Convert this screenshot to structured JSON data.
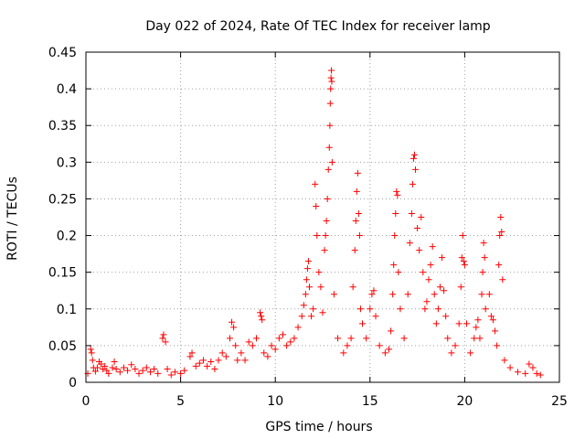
{
  "chart_data": {
    "type": "scatter",
    "title": "Day 022 of 2024, Rate Of TEC Index for receiver lamp",
    "xlabel": "GPS time / hours",
    "ylabel": "ROTI / TECUs",
    "xlim": [
      0,
      25
    ],
    "ylim": [
      0,
      0.45
    ],
    "xticks": [
      0,
      5,
      10,
      15,
      20,
      25
    ],
    "xtick_labels": [
      "0",
      "5",
      "10",
      "15",
      "20",
      "25"
    ],
    "yticks": [
      0,
      0.05,
      0.1,
      0.15,
      0.2,
      0.25,
      0.3,
      0.35,
      0.4,
      0.45
    ],
    "ytick_labels": [
      "0",
      "0.05",
      "0.1",
      "0.15",
      "0.2",
      "0.25",
      "0.3",
      "0.35",
      "0.4",
      "0.45"
    ],
    "grid": true,
    "marker": "+",
    "color": "#ff0000",
    "points": [
      [
        0.1,
        0.012
      ],
      [
        0.25,
        0.045
      ],
      [
        0.3,
        0.04
      ],
      [
        0.35,
        0.03
      ],
      [
        0.4,
        0.02
      ],
      [
        0.5,
        0.015
      ],
      [
        0.6,
        0.02
      ],
      [
        0.7,
        0.028
      ],
      [
        0.8,
        0.025
      ],
      [
        0.9,
        0.018
      ],
      [
        1.0,
        0.022
      ],
      [
        1.1,
        0.016
      ],
      [
        1.2,
        0.012
      ],
      [
        1.4,
        0.02
      ],
      [
        1.5,
        0.028
      ],
      [
        1.6,
        0.018
      ],
      [
        1.8,
        0.014
      ],
      [
        2.0,
        0.02
      ],
      [
        2.2,
        0.016
      ],
      [
        2.4,
        0.024
      ],
      [
        2.6,
        0.018
      ],
      [
        2.8,
        0.012
      ],
      [
        3.0,
        0.016
      ],
      [
        3.2,
        0.02
      ],
      [
        3.4,
        0.014
      ],
      [
        3.6,
        0.018
      ],
      [
        3.8,
        0.012
      ],
      [
        4.05,
        0.06
      ],
      [
        4.1,
        0.065
      ],
      [
        4.2,
        0.055
      ],
      [
        4.3,
        0.018
      ],
      [
        4.5,
        0.01
      ],
      [
        4.7,
        0.014
      ],
      [
        5.0,
        0.012
      ],
      [
        5.2,
        0.016
      ],
      [
        5.5,
        0.035
      ],
      [
        5.6,
        0.04
      ],
      [
        5.8,
        0.022
      ],
      [
        6.0,
        0.026
      ],
      [
        6.2,
        0.03
      ],
      [
        6.4,
        0.022
      ],
      [
        6.6,
        0.028
      ],
      [
        6.8,
        0.018
      ],
      [
        7.0,
        0.03
      ],
      [
        7.2,
        0.04
      ],
      [
        7.4,
        0.035
      ],
      [
        7.6,
        0.06
      ],
      [
        7.7,
        0.082
      ],
      [
        7.8,
        0.075
      ],
      [
        7.9,
        0.05
      ],
      [
        8.0,
        0.03
      ],
      [
        8.2,
        0.04
      ],
      [
        8.4,
        0.03
      ],
      [
        8.6,
        0.055
      ],
      [
        8.8,
        0.05
      ],
      [
        9.0,
        0.06
      ],
      [
        9.2,
        0.095
      ],
      [
        9.25,
        0.09
      ],
      [
        9.3,
        0.085
      ],
      [
        9.4,
        0.04
      ],
      [
        9.6,
        0.035
      ],
      [
        9.8,
        0.05
      ],
      [
        10.0,
        0.045
      ],
      [
        10.2,
        0.06
      ],
      [
        10.4,
        0.065
      ],
      [
        10.6,
        0.05
      ],
      [
        10.8,
        0.055
      ],
      [
        11.0,
        0.06
      ],
      [
        11.2,
        0.075
      ],
      [
        11.4,
        0.09
      ],
      [
        11.5,
        0.105
      ],
      [
        11.6,
        0.12
      ],
      [
        11.65,
        0.14
      ],
      [
        11.7,
        0.155
      ],
      [
        11.75,
        0.165
      ],
      [
        11.8,
        0.13
      ],
      [
        11.9,
        0.09
      ],
      [
        12.0,
        0.1
      ],
      [
        12.1,
        0.27
      ],
      [
        12.15,
        0.24
      ],
      [
        12.2,
        0.2
      ],
      [
        12.3,
        0.15
      ],
      [
        12.4,
        0.13
      ],
      [
        12.5,
        0.095
      ],
      [
        12.6,
        0.18
      ],
      [
        12.65,
        0.2
      ],
      [
        12.7,
        0.22
      ],
      [
        12.75,
        0.25
      ],
      [
        12.8,
        0.29
      ],
      [
        12.85,
        0.32
      ],
      [
        12.88,
        0.35
      ],
      [
        12.9,
        0.38
      ],
      [
        12.92,
        0.4
      ],
      [
        12.94,
        0.415
      ],
      [
        12.96,
        0.425
      ],
      [
        12.98,
        0.41
      ],
      [
        13.0,
        0.3
      ],
      [
        13.1,
        0.12
      ],
      [
        13.3,
        0.06
      ],
      [
        13.6,
        0.04
      ],
      [
        13.8,
        0.05
      ],
      [
        14.0,
        0.06
      ],
      [
        14.1,
        0.13
      ],
      [
        14.2,
        0.18
      ],
      [
        14.25,
        0.22
      ],
      [
        14.3,
        0.26
      ],
      [
        14.35,
        0.285
      ],
      [
        14.4,
        0.23
      ],
      [
        14.45,
        0.2
      ],
      [
        14.5,
        0.1
      ],
      [
        14.6,
        0.08
      ],
      [
        14.8,
        0.06
      ],
      [
        15.0,
        0.1
      ],
      [
        15.1,
        0.12
      ],
      [
        15.2,
        0.125
      ],
      [
        15.3,
        0.09
      ],
      [
        15.5,
        0.05
      ],
      [
        15.8,
        0.04
      ],
      [
        16.0,
        0.045
      ],
      [
        16.1,
        0.07
      ],
      [
        16.2,
        0.12
      ],
      [
        16.25,
        0.16
      ],
      [
        16.3,
        0.2
      ],
      [
        16.35,
        0.23
      ],
      [
        16.4,
        0.26
      ],
      [
        16.45,
        0.255
      ],
      [
        16.5,
        0.15
      ],
      [
        16.6,
        0.1
      ],
      [
        16.8,
        0.06
      ],
      [
        17.0,
        0.12
      ],
      [
        17.1,
        0.19
      ],
      [
        17.2,
        0.23
      ],
      [
        17.25,
        0.27
      ],
      [
        17.3,
        0.305
      ],
      [
        17.35,
        0.31
      ],
      [
        17.4,
        0.29
      ],
      [
        17.5,
        0.21
      ],
      [
        17.6,
        0.18
      ],
      [
        17.7,
        0.225
      ],
      [
        17.8,
        0.15
      ],
      [
        17.9,
        0.1
      ],
      [
        18.0,
        0.11
      ],
      [
        18.1,
        0.14
      ],
      [
        18.2,
        0.16
      ],
      [
        18.3,
        0.185
      ],
      [
        18.4,
        0.12
      ],
      [
        18.5,
        0.08
      ],
      [
        18.6,
        0.1
      ],
      [
        18.7,
        0.13
      ],
      [
        18.8,
        0.17
      ],
      [
        18.9,
        0.125
      ],
      [
        19.0,
        0.09
      ],
      [
        19.1,
        0.06
      ],
      [
        19.3,
        0.04
      ],
      [
        19.5,
        0.05
      ],
      [
        19.7,
        0.08
      ],
      [
        19.8,
        0.13
      ],
      [
        19.85,
        0.17
      ],
      [
        19.9,
        0.2
      ],
      [
        19.95,
        0.165
      ],
      [
        20.0,
        0.16
      ],
      [
        20.1,
        0.08
      ],
      [
        20.3,
        0.04
      ],
      [
        20.5,
        0.06
      ],
      [
        20.6,
        0.075
      ],
      [
        20.7,
        0.085
      ],
      [
        20.8,
        0.06
      ],
      [
        20.9,
        0.12
      ],
      [
        20.95,
        0.15
      ],
      [
        21.0,
        0.19
      ],
      [
        21.05,
        0.17
      ],
      [
        21.1,
        0.1
      ],
      [
        21.3,
        0.12
      ],
      [
        21.4,
        0.09
      ],
      [
        21.5,
        0.085
      ],
      [
        21.6,
        0.07
      ],
      [
        21.7,
        0.05
      ],
      [
        21.8,
        0.16
      ],
      [
        21.85,
        0.2
      ],
      [
        21.9,
        0.225
      ],
      [
        21.95,
        0.205
      ],
      [
        22.0,
        0.14
      ],
      [
        22.1,
        0.03
      ],
      [
        22.4,
        0.02
      ],
      [
        22.8,
        0.014
      ],
      [
        23.2,
        0.012
      ],
      [
        23.4,
        0.025
      ],
      [
        23.6,
        0.02
      ],
      [
        23.8,
        0.012
      ],
      [
        24.0,
        0.01
      ]
    ]
  }
}
